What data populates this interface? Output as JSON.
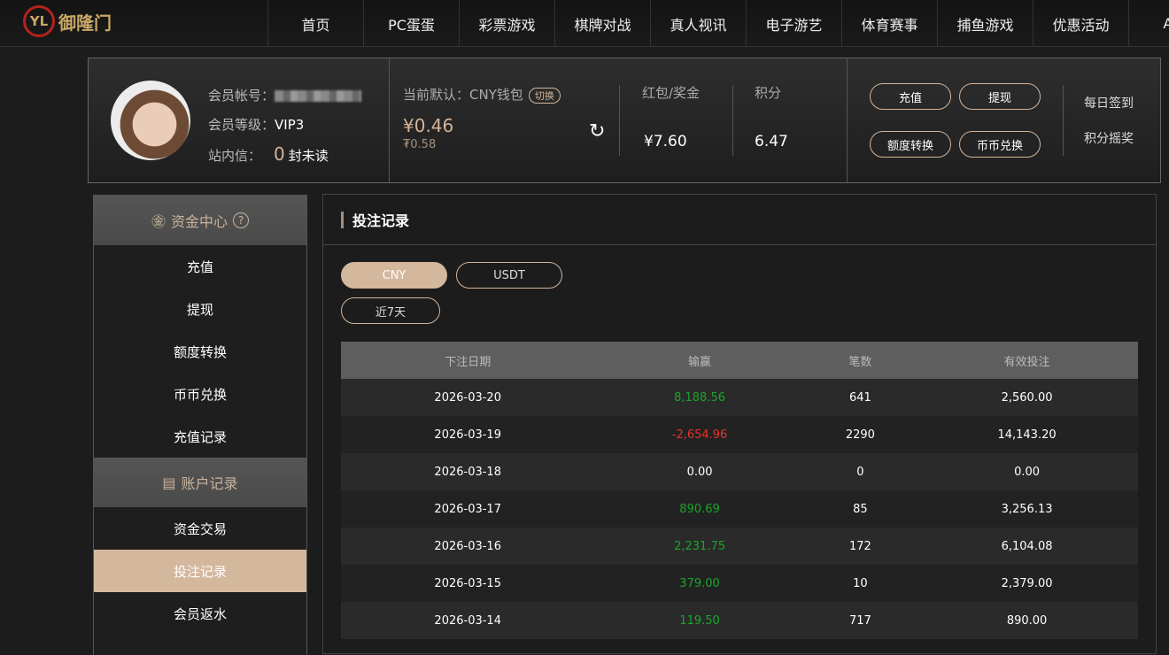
{
  "brand": {
    "name": "御隆门"
  },
  "nav": [
    "首页",
    "PC蛋蛋",
    "彩票游戏",
    "棋牌对战",
    "真人视讯",
    "电子游艺",
    "体育赛事",
    "捕鱼游戏",
    "优惠活动",
    "APP"
  ],
  "user": {
    "account_label": "会员帐号：",
    "level_label": "会员等级：",
    "level": "VIP3",
    "msg_label": "站内信：",
    "unread": "0",
    "unread_suffix": "封未读"
  },
  "wallet": {
    "label": "当前默认：CNY钱包",
    "switch": "切换",
    "balance": "¥0.46",
    "balance_alt": "₮0.58",
    "bonus_label": "红包/奖金",
    "bonus": "¥7.60",
    "points_label": "积分",
    "points": "6.47"
  },
  "actions": [
    "充值",
    "提现",
    "额度转换",
    "币币兑换"
  ],
  "links": [
    "每日签到",
    "积分摇奖"
  ],
  "sidebar": {
    "fund_title": "资金中心",
    "fund_items": [
      "充值",
      "提现",
      "额度转换",
      "币币兑换",
      "充值记录"
    ],
    "record_title": "账户记录",
    "record_items": [
      "资金交易",
      "投注记录",
      "会员返水"
    ],
    "active": "投注记录"
  },
  "panel": {
    "title": "投注记录",
    "currency_tabs": [
      "CNY",
      "USDT"
    ],
    "active_currency": "CNY",
    "period": "近7天"
  },
  "table": {
    "headers": [
      "下注日期",
      "输赢",
      "笔数",
      "有效投注"
    ],
    "rows": [
      [
        "2026-03-20",
        "8,188.56",
        "641",
        "2,560.00"
      ],
      [
        "2026-03-19",
        "-2,654.96",
        "2290",
        "14,143.20"
      ],
      [
        "2026-03-18",
        "0.00",
        "0",
        "0.00"
      ],
      [
        "2026-03-17",
        "890.69",
        "85",
        "3,256.13"
      ],
      [
        "2026-03-16",
        "2,231.75",
        "172",
        "6,104.08"
      ],
      [
        "2026-03-15",
        "379.00",
        "10",
        "2,379.00"
      ],
      [
        "2026-03-14",
        "119.50",
        "717",
        "890.00"
      ]
    ]
  },
  "colors": {
    "accent": "#d4b89e",
    "win": "#1aa52a",
    "loss": "#e8302f"
  }
}
